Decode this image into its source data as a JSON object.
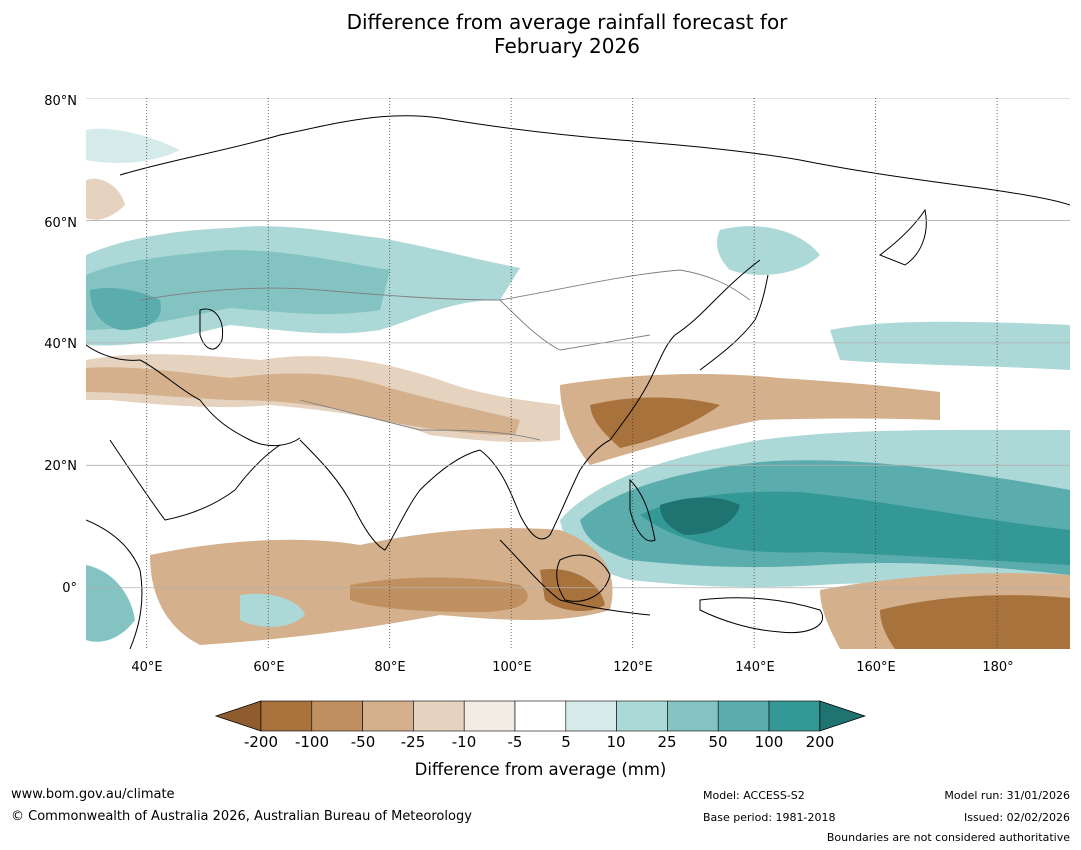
{
  "title": {
    "line1": "Difference from average rainfall forecast for",
    "line2": "February 2026"
  },
  "map": {
    "lat_labels": [
      "80°N",
      "60°N",
      "40°N",
      "20°N",
      "0°"
    ],
    "lon_labels": [
      "40°E",
      "60°E",
      "80°E",
      "100°E",
      "120°E",
      "140°E",
      "160°E",
      "180°"
    ],
    "lat_range": [
      -10,
      80
    ],
    "lon_range": [
      30,
      192
    ],
    "lat_ticks": [
      80,
      60,
      40,
      20,
      0
    ],
    "lon_ticks": [
      40,
      60,
      80,
      100,
      120,
      140,
      160,
      180
    ],
    "colors": {
      "ocean_bg": "#ffffff",
      "coast": "#000000",
      "border": "#808080",
      "grid": "#b0b0b0"
    }
  },
  "colorbar": {
    "ticks": [
      "-200",
      "-100",
      "-50",
      "-25",
      "-10",
      "-5",
      "5",
      "10",
      "25",
      "50",
      "100",
      "200"
    ],
    "colors": [
      "#8f5d2d",
      "#a8723c",
      "#c19061",
      "#d4b08c",
      "#e5d2bf",
      "#f2ece5",
      "#ffffff",
      "#d4ebea",
      "#acd8d7",
      "#83c3c2",
      "#5aadac",
      "#339896",
      "#1f7472"
    ],
    "label": "Difference from average (mm)"
  },
  "footer": {
    "url": "www.bom.gov.au/climate",
    "copyright": "© Commonwealth of Australia 2026, Australian Bureau of Meteorology",
    "model": "Model: ACCESS-S2",
    "base_period": "Base period: 1981-2018",
    "model_run": "Model run: 31/01/2026",
    "issued": "Issued: 02/02/2026",
    "disclaimer": "Boundaries are not considered authoritative"
  }
}
